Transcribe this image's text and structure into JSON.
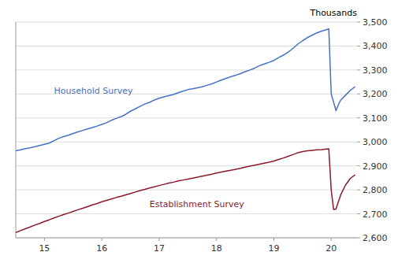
{
  "chart_data": {
    "type": "line",
    "title": "Thousands",
    "x": [
      14.5,
      14.583,
      14.667,
      14.75,
      14.833,
      14.917,
      15.0,
      15.083,
      15.167,
      15.25,
      15.333,
      15.417,
      15.5,
      15.583,
      15.667,
      15.75,
      15.833,
      15.917,
      16.0,
      16.083,
      16.167,
      16.25,
      16.333,
      16.417,
      16.5,
      16.583,
      16.667,
      16.75,
      16.833,
      16.917,
      17.0,
      17.083,
      17.167,
      17.25,
      17.333,
      17.417,
      17.5,
      17.583,
      17.667,
      17.75,
      17.833,
      17.917,
      18.0,
      18.083,
      18.167,
      18.25,
      18.333,
      18.417,
      18.5,
      18.583,
      18.667,
      18.75,
      18.833,
      18.917,
      19.0,
      19.083,
      19.167,
      19.25,
      19.333,
      19.417,
      19.5,
      19.583,
      19.667,
      19.75,
      19.833,
      19.917,
      19.958,
      20.0,
      20.042,
      20.083,
      20.125,
      20.167,
      20.25,
      20.333,
      20.417
    ],
    "series": [
      {
        "name": "Household Survey",
        "color": "#4472C4",
        "values": [
          2963,
          2967,
          2972,
          2975,
          2980,
          2985,
          2990,
          2995,
          3005,
          3015,
          3022,
          3028,
          3035,
          3042,
          3048,
          3054,
          3060,
          3066,
          3073,
          3080,
          3090,
          3098,
          3105,
          3115,
          3128,
          3138,
          3148,
          3158,
          3165,
          3175,
          3182,
          3188,
          3193,
          3198,
          3205,
          3212,
          3218,
          3222,
          3226,
          3230,
          3236,
          3242,
          3250,
          3258,
          3265,
          3272,
          3278,
          3285,
          3293,
          3300,
          3308,
          3318,
          3325,
          3332,
          3340,
          3352,
          3362,
          3375,
          3390,
          3408,
          3422,
          3435,
          3445,
          3455,
          3462,
          3468,
          3472,
          3200,
          3165,
          3130,
          3155,
          3175,
          3195,
          3215,
          3230
        ]
      },
      {
        "name": "Establishment Survey",
        "color": "#8B1A2A",
        "values": [
          2622,
          2630,
          2638,
          2645,
          2653,
          2660,
          2668,
          2675,
          2683,
          2690,
          2697,
          2703,
          2710,
          2717,
          2723,
          2730,
          2737,
          2743,
          2750,
          2756,
          2762,
          2768,
          2773,
          2779,
          2785,
          2791,
          2797,
          2802,
          2808,
          2813,
          2818,
          2823,
          2828,
          2832,
          2837,
          2841,
          2845,
          2849,
          2853,
          2857,
          2861,
          2865,
          2870,
          2874,
          2878,
          2882,
          2886,
          2890,
          2895,
          2899,
          2903,
          2907,
          2911,
          2915,
          2920,
          2927,
          2933,
          2940,
          2947,
          2955,
          2960,
          2963,
          2965,
          2967,
          2968,
          2970,
          2971,
          2800,
          2718,
          2720,
          2750,
          2780,
          2820,
          2848,
          2862
        ]
      }
    ],
    "xlim": [
      14.5,
      20.45
    ],
    "xticks": [
      15,
      16,
      17,
      18,
      19,
      20
    ],
    "ylim": [
      2600,
      3500
    ],
    "yticks": [
      {
        "value": 2600,
        "label": "2,600"
      },
      {
        "value": 2700,
        "label": "2,700"
      },
      {
        "value": 2800,
        "label": "2,800"
      },
      {
        "value": 2900,
        "label": "2,900"
      },
      {
        "value": 3000,
        "label": "3,000"
      },
      {
        "value": 3100,
        "label": "3,100"
      },
      {
        "value": 3200,
        "label": "3,200"
      },
      {
        "value": 3300,
        "label": "3,300"
      },
      {
        "value": 3400,
        "label": "3,400"
      },
      {
        "value": 3500,
        "label": "3,500"
      }
    ],
    "grid": true
  }
}
